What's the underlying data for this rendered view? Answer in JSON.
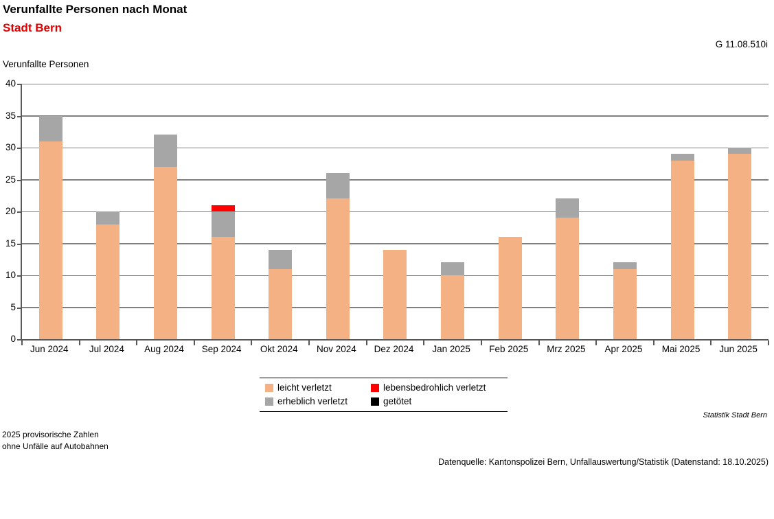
{
  "header": {
    "title": "Verunfallte Personen nach Monat",
    "subtitle": "Stadt Bern",
    "graphic_code": "G 11.08.510i"
  },
  "colors": {
    "subtitle_red": "#E00000",
    "leicht_verletzt": "#F4B183",
    "erheblich_verletzt": "#A6A6A6",
    "lebensbedrohlich_verletzt": "#FF0000",
    "getoetet": "#000000",
    "gridline": "#808080",
    "axis": "#595959"
  },
  "chart_data": {
    "type": "bar",
    "stacked": true,
    "title": "Verunfallte Personen nach Monat",
    "subtitle": "Stadt Bern",
    "xlabel": "",
    "ylabel": "Verunfallte Personen",
    "ylim": [
      0,
      40
    ],
    "ytick_step": 5,
    "grid": true,
    "legend_position": "bottom",
    "categories": [
      "Jun 2024",
      "Jul 2024",
      "Aug 2024",
      "Sep 2024",
      "Okt 2024",
      "Nov 2024",
      "Dez 2024",
      "Jan 2025",
      "Feb 2025",
      "Mrz 2025",
      "Apr 2025",
      "Mai 2025",
      "Jun 2025"
    ],
    "series": [
      {
        "name": "leicht verletzt",
        "color": "#F4B183",
        "values": [
          31,
          18,
          27,
          16,
          11,
          22,
          14,
          10,
          16,
          19,
          11,
          28,
          29
        ]
      },
      {
        "name": "erheblich verletzt",
        "color": "#A6A6A6",
        "values": [
          4,
          2,
          5,
          4,
          3,
          4,
          0,
          2,
          0,
          3,
          1,
          1,
          1
        ]
      },
      {
        "name": "lebensbedrohlich verletzt",
        "color": "#FF0000",
        "values": [
          0,
          0,
          0,
          1,
          0,
          0,
          0,
          0,
          0,
          0,
          0,
          0,
          0
        ]
      },
      {
        "name": "getötet",
        "color": "#000000",
        "values": [
          0,
          0,
          0,
          0,
          0,
          0,
          0,
          0,
          0,
          0,
          0,
          0,
          0
        ]
      }
    ],
    "totals": [
      35,
      20,
      32,
      21,
      14,
      26,
      14,
      12,
      16,
      22,
      12,
      29,
      30
    ]
  },
  "legend": {
    "items": [
      {
        "label": "leicht verletzt",
        "color": "#F4B183"
      },
      {
        "label": "lebensbedrohlich verletzt",
        "color": "#FF0000"
      },
      {
        "label": "erheblich verletzt",
        "color": "#A6A6A6"
      },
      {
        "label": "getötet",
        "color": "#000000"
      }
    ]
  },
  "footnotes": {
    "statistik": "Statistik Stadt Bern",
    "note_line1": "2025 provisorische Zahlen",
    "note_line2": "ohne Unfälle auf Autobahnen",
    "datasource": "Datenquelle: Kantonspolizei Bern, Unfallauswertung/Statistik (Datenstand: 18.10.2025)"
  }
}
